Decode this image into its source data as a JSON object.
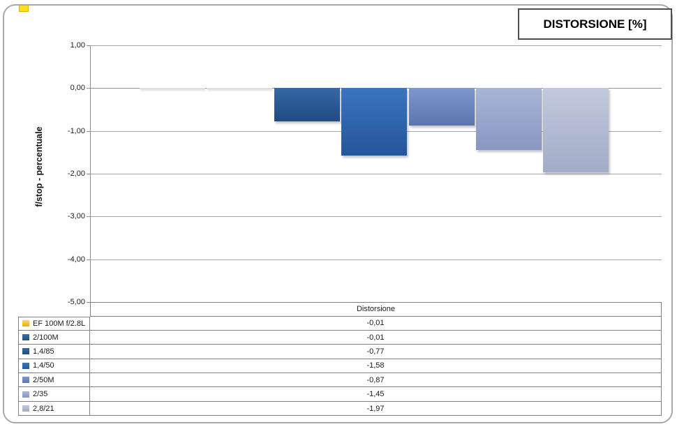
{
  "title": "DISTORSIONE [%]",
  "y_axis": {
    "title": "f/stop - percentuale",
    "ticks": [
      "1,00",
      "0,00",
      "-1,00",
      "-2,00",
      "-3,00",
      "-4,00",
      "-5,00"
    ]
  },
  "table": {
    "header": "Distorsione"
  },
  "chart_data": {
    "type": "bar",
    "categories": [
      "Distorsione"
    ],
    "series": [
      {
        "name": "EF 100M f/2.8L",
        "value": -0.01,
        "display": "-0,01",
        "color": "#ffc713",
        "color_light": "#ffd95a",
        "color_dark": "#efae0e"
      },
      {
        "name": "2/100M",
        "value": -0.01,
        "display": "-0,01",
        "color": "#30639a",
        "color_light": "#3a70a8",
        "color_dark": "#26507f"
      },
      {
        "name": "1,4/85",
        "value": -0.77,
        "display": "-0,77",
        "color": "#2b5a94",
        "color_light": "#3569a6",
        "color_dark": "#1f4b80"
      },
      {
        "name": "1,4/50",
        "value": -1.58,
        "display": "-1,58",
        "color": "#2e65ae",
        "color_light": "#3b74bf",
        "color_dark": "#245698"
      },
      {
        "name": "2/50M",
        "value": -0.87,
        "display": "-0,87",
        "color": "#6b86be",
        "color_light": "#7e97cc",
        "color_dark": "#5b77ae"
      },
      {
        "name": "2/35",
        "value": -1.45,
        "display": "-1,45",
        "color": "#98a7cd",
        "color_light": "#a8b5d8",
        "color_dark": "#8897c1"
      },
      {
        "name": "2,8/21",
        "value": -1.97,
        "display": "-1,97",
        "color": "#b4bdd5",
        "color_light": "#c2c9de",
        "color_dark": "#a2acc6"
      }
    ],
    "title": "DISTORSIONE [%]",
    "xlabel": "",
    "ylabel": "f/stop - percentuale",
    "ylim": [
      -5,
      1
    ],
    "grid": true,
    "legend_position": "data-table-left",
    "value_format": "comma-decimal"
  }
}
